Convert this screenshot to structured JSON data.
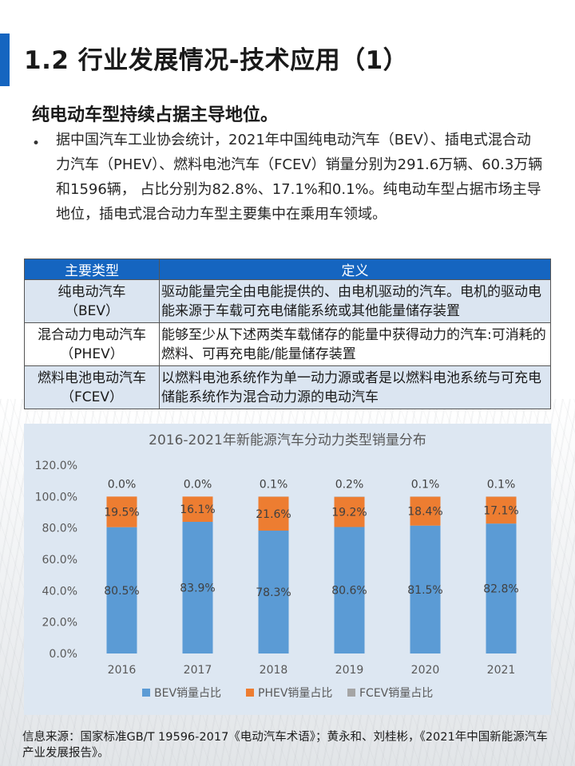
{
  "header": {
    "title": "1.2 行业发展情况-技术应用（1）",
    "subtitle": "纯电动车型持续占据主导地位。"
  },
  "body": {
    "bullet": "•",
    "paragraph": "据中国汽车工业协会统计，2021年中国纯电动汽车（BEV）、插电式混合动力汽车（PHEV）、燃料电池汽车（FCEV）销量分别为291.6万辆、60.3万辆和1596辆， 占比分别为82.8%、17.1%和0.1%。纯电动车型占据市场主导地位，插电式混合动力车型主要集中在乘用车领域。"
  },
  "table": {
    "headers": [
      "主要类型",
      "定义"
    ],
    "rows": [
      {
        "type_line1": "纯电动汽车",
        "type_line2": "（BEV）",
        "definition": "驱动能量完全由电能提供的、由电机驱动的汽车。电机的驱动电能来源于车载可充电储能系统或其他能量储存装置"
      },
      {
        "type_line1": "混合动力电动汽车",
        "type_line2": "（PHEV）",
        "definition": "能够至少从下述两类车载储存的能量中获得动力的汽车:可消耗的燃料、可再充电能/能量储存装置"
      },
      {
        "type_line1": "燃料电池电动汽车",
        "type_line2": "（FCEV）",
        "definition": "以燃料电池系统作为单一动力源或者是以燃料电池系统与可充电储能系统作为混合动力源的电动汽车"
      }
    ]
  },
  "chart_data": {
    "type": "bar",
    "stacked": true,
    "title": "2016-2021年新能源汽车分动力类型销量分布",
    "categories": [
      "2016",
      "2017",
      "2018",
      "2019",
      "2020",
      "2021"
    ],
    "series": [
      {
        "name": "BEV销量占比",
        "color": "#5b9bd5",
        "values": [
          80.5,
          83.9,
          78.3,
          80.6,
          81.5,
          82.8
        ],
        "labels": [
          "80.5%",
          "83.9%",
          "78.3%",
          "80.6%",
          "81.5%",
          "82.8%"
        ]
      },
      {
        "name": "PHEV销量占比",
        "color": "#ed7d31",
        "values": [
          19.5,
          16.1,
          21.6,
          19.2,
          18.4,
          17.1
        ],
        "labels": [
          "19.5%",
          "16.1%",
          "21.6%",
          "19.2%",
          "18.4%",
          "17.1%"
        ]
      },
      {
        "name": "FCEV销量占比",
        "color": "#a5a5a5",
        "values": [
          0.0,
          0.0,
          0.1,
          0.2,
          0.1,
          0.1
        ],
        "labels": [
          "0.0%",
          "0.0%",
          "0.1%",
          "0.2%",
          "0.1%",
          "0.1%"
        ]
      }
    ],
    "yticks": [
      "0.0%",
      "20.0%",
      "40.0%",
      "60.0%",
      "80.0%",
      "100.0%",
      "120.0%"
    ],
    "ylim": [
      0,
      120
    ],
    "xlabel": "",
    "ylabel": "",
    "legend": "bottom"
  },
  "source": {
    "text": "信息来源：国家标准GB/T 19596-2017《电动汽车术语》；黄永和、刘桂彬，《2021年中国新能源汽车产业发展报告》。"
  },
  "colors": {
    "accent": "#1565c0",
    "table_header_bg": "#1565c0",
    "table_row_bg": "#dbe5f1",
    "chart_bg": "#dde7f2"
  }
}
